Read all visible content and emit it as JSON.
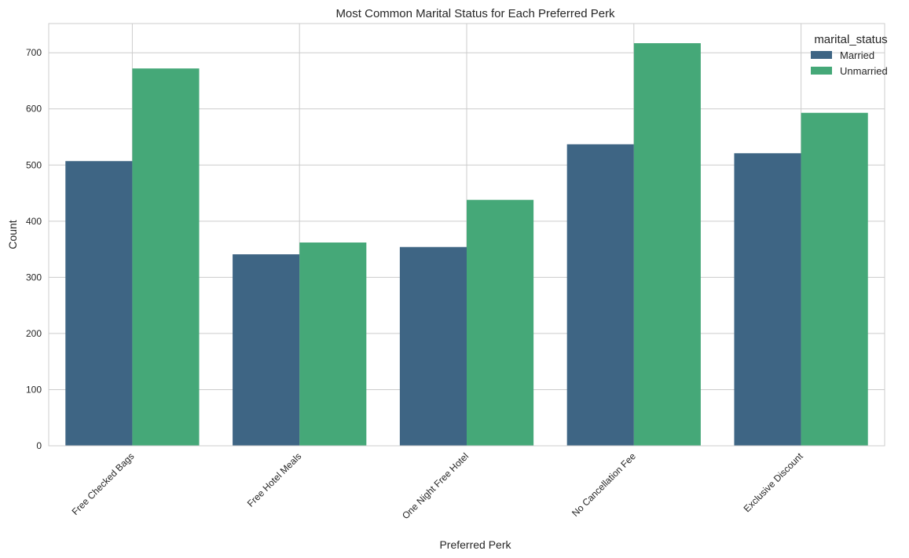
{
  "colors": {
    "background": "#ffffff",
    "grid": "#cccccc",
    "spine": "#cccccc",
    "series": [
      "#3e6584",
      "#45a878"
    ]
  },
  "chart_data": {
    "type": "bar",
    "title": "Most Common Marital Status for Each Preferred Perk",
    "xlabel": "Preferred Perk",
    "ylabel": "Count",
    "categories": [
      "Free Checked Bags",
      "Free Hotel Meals",
      "One Night Free Hotel",
      "No Cancellation Fee",
      "Exclusive Discount"
    ],
    "series": [
      {
        "name": "Married",
        "values": [
          507,
          341,
          354,
          537,
          521
        ]
      },
      {
        "name": "Unmarried",
        "values": [
          672,
          362,
          438,
          717,
          593
        ]
      }
    ],
    "ylim": [
      0,
      752
    ],
    "yticks": [
      0,
      100,
      200,
      300,
      400,
      500,
      600,
      700
    ],
    "grid": true,
    "x_tick_rotation": -45,
    "legend": {
      "title": "marital_status",
      "position": "top-right"
    }
  }
}
